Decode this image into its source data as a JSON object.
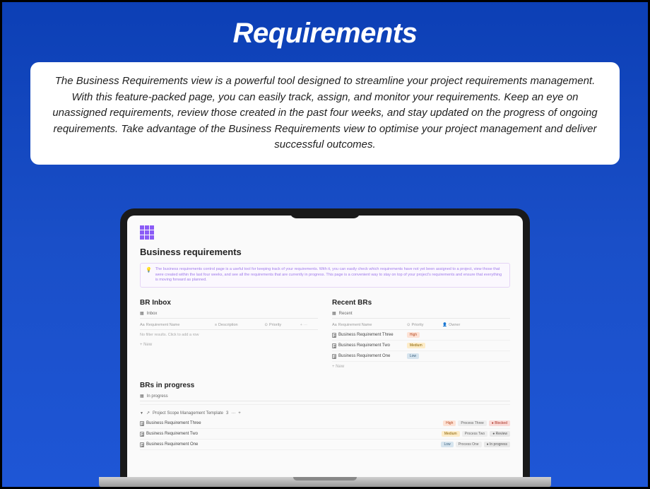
{
  "hero": {
    "title": "Requirements",
    "description": "The Business Requirements view is a powerful tool designed to streamline your project requirements management. With this feature-packed page, you can easily track, assign, and monitor your requirements. Keep an eye on unassigned requirements, review those created in the past four weeks, and stay updated on the progress of ongoing requirements. Take advantage of the Business Requirements view to optimise your project management and deliver successful outcomes."
  },
  "page": {
    "title": "Business requirements",
    "info": "The business requirements control page is a useful tool for keeping track of your requirements. With it, you can easily check which requirements have not yet been assigned to a project, view those that were created within the last four weeks, and see all the requirements that are currently in progress. This page is a convenient way to stay on top of your project's requirements and ensure that everything is moving forward as planned."
  },
  "inbox": {
    "title": "BR Inbox",
    "tab": "Inbox",
    "cols": {
      "name": "Requirement Name",
      "desc": "Description",
      "prio": "Priority"
    },
    "empty": "No filter results. Click to add a row",
    "add": "+ New"
  },
  "recent": {
    "title": "Recent BRs",
    "tab": "Recent",
    "cols": {
      "name": "Requirement Name",
      "prio": "Priority",
      "owner": "Owner"
    },
    "rows": [
      {
        "name": "Business Requirement Three",
        "prio": "High",
        "prioClass": "b-high"
      },
      {
        "name": "Business Requirement Two",
        "prio": "Medium",
        "prioClass": "b-med"
      },
      {
        "name": "Business Requirement One",
        "prio": "Low",
        "prioClass": "b-low"
      }
    ],
    "add": "+ New"
  },
  "progress": {
    "title": "BRs in progress",
    "tab": "In progress",
    "group": "Project Scope Management Template",
    "groupCount": "3",
    "rows": [
      {
        "name": "Business Requirement Three",
        "prio": "High",
        "prioClass": "b-high",
        "proc": "Process Three",
        "status": "Blocked",
        "statusClass": "b-blocked"
      },
      {
        "name": "Business Requirement Two",
        "prio": "Medium",
        "prioClass": "b-med",
        "proc": "Process Two",
        "status": "Review",
        "statusClass": "b-review"
      },
      {
        "name": "Business Requirement One",
        "prio": "Low",
        "prioClass": "b-low",
        "proc": "Process One",
        "status": "In progress",
        "statusClass": "b-prog"
      }
    ]
  },
  "colors": {
    "brand": "#8b5cf6",
    "bgGradientTop": "#0c3fb5",
    "bgGradientBottom": "#1e56d6"
  }
}
